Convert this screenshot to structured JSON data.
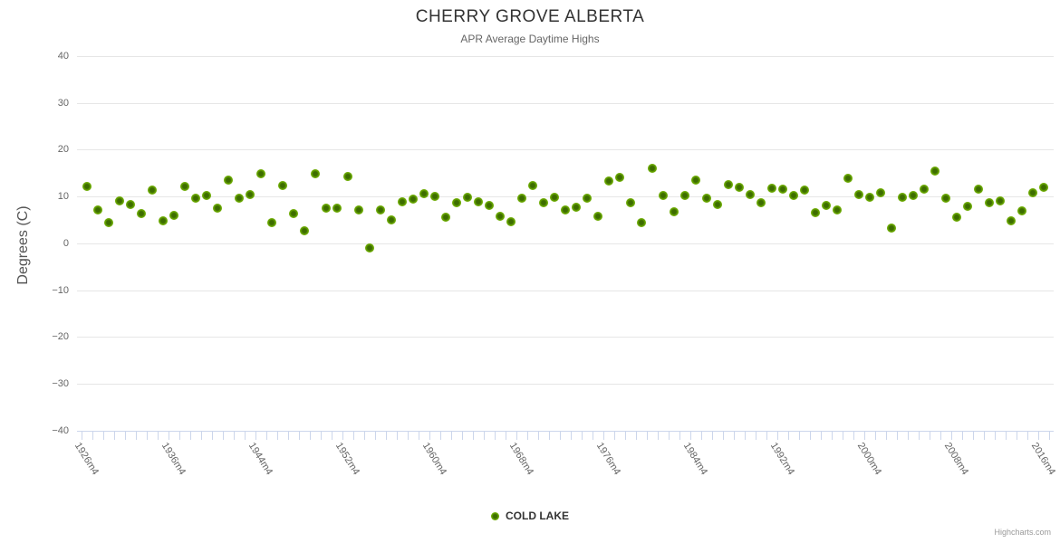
{
  "header": {
    "title": "CHERRY GROVE ALBERTA",
    "subtitle": "APR Average Daytime Highs"
  },
  "legend": {
    "label": "COLD LAKE"
  },
  "credit": {
    "label": "Highcharts.com"
  },
  "colors": {
    "point_green": "#7ab50a",
    "point_center": "#3d6d00",
    "gridline": "#e6e6e6",
    "axis_line": "#ccd6eb",
    "title_text": "#333333",
    "muted_text": "#666666"
  },
  "chart_data": {
    "type": "scatter",
    "title": "CHERRY GROVE ALBERTA",
    "subtitle": "APR Average Daytime Highs",
    "xlabel": "",
    "ylabel": "Degrees (C)",
    "ylim": [
      -40,
      40
    ],
    "yticks": [
      40,
      30,
      20,
      10,
      0,
      -10,
      -20,
      -30,
      -40
    ],
    "grid": "horizontal-only",
    "legend_position": "bottom-center",
    "x_tick_labels": [
      "1926m4",
      "1936m4",
      "1944m4",
      "1952m4",
      "1960m4",
      "1968m4",
      "1976m4",
      "1984m4",
      "1992m4",
      "2000m4",
      "2008m4",
      "2016m4"
    ],
    "x_label_every_n_points": 8,
    "series": [
      {
        "name": "COLD LAKE",
        "marker_color": "#7ab50a",
        "values": [
          12.1,
          7.2,
          4.5,
          9.1,
          8.3,
          6.3,
          11.4,
          4.9,
          5.9,
          12.1,
          9.6,
          10.3,
          7.6,
          13.6,
          9.6,
          10.5,
          14.8,
          4.5,
          12.3,
          6.3,
          2.6,
          14.8,
          7.5,
          7.5,
          14.3,
          7.1,
          -0.9,
          7.1,
          5.0,
          8.8,
          9.5,
          10.6,
          10.0,
          5.6,
          8.6,
          9.9,
          8.8,
          8.1,
          5.8,
          4.6,
          9.6,
          12.3,
          8.6,
          9.9,
          7.1,
          7.8,
          9.6,
          5.8,
          13.3,
          14.1,
          8.6,
          4.4,
          16.0,
          10.3,
          6.7,
          10.2,
          13.6,
          9.6,
          8.3,
          12.5,
          12.0,
          10.4,
          8.7,
          11.8,
          11.6,
          10.2,
          11.4,
          6.5,
          8.1,
          7.1,
          13.9,
          10.5,
          9.8,
          10.9,
          3.3,
          9.8,
          10.3,
          11.5,
          15.4,
          9.6,
          5.5,
          8.0,
          11.5,
          8.6,
          9.1,
          4.8,
          6.9,
          10.9,
          11.9
        ]
      }
    ]
  }
}
